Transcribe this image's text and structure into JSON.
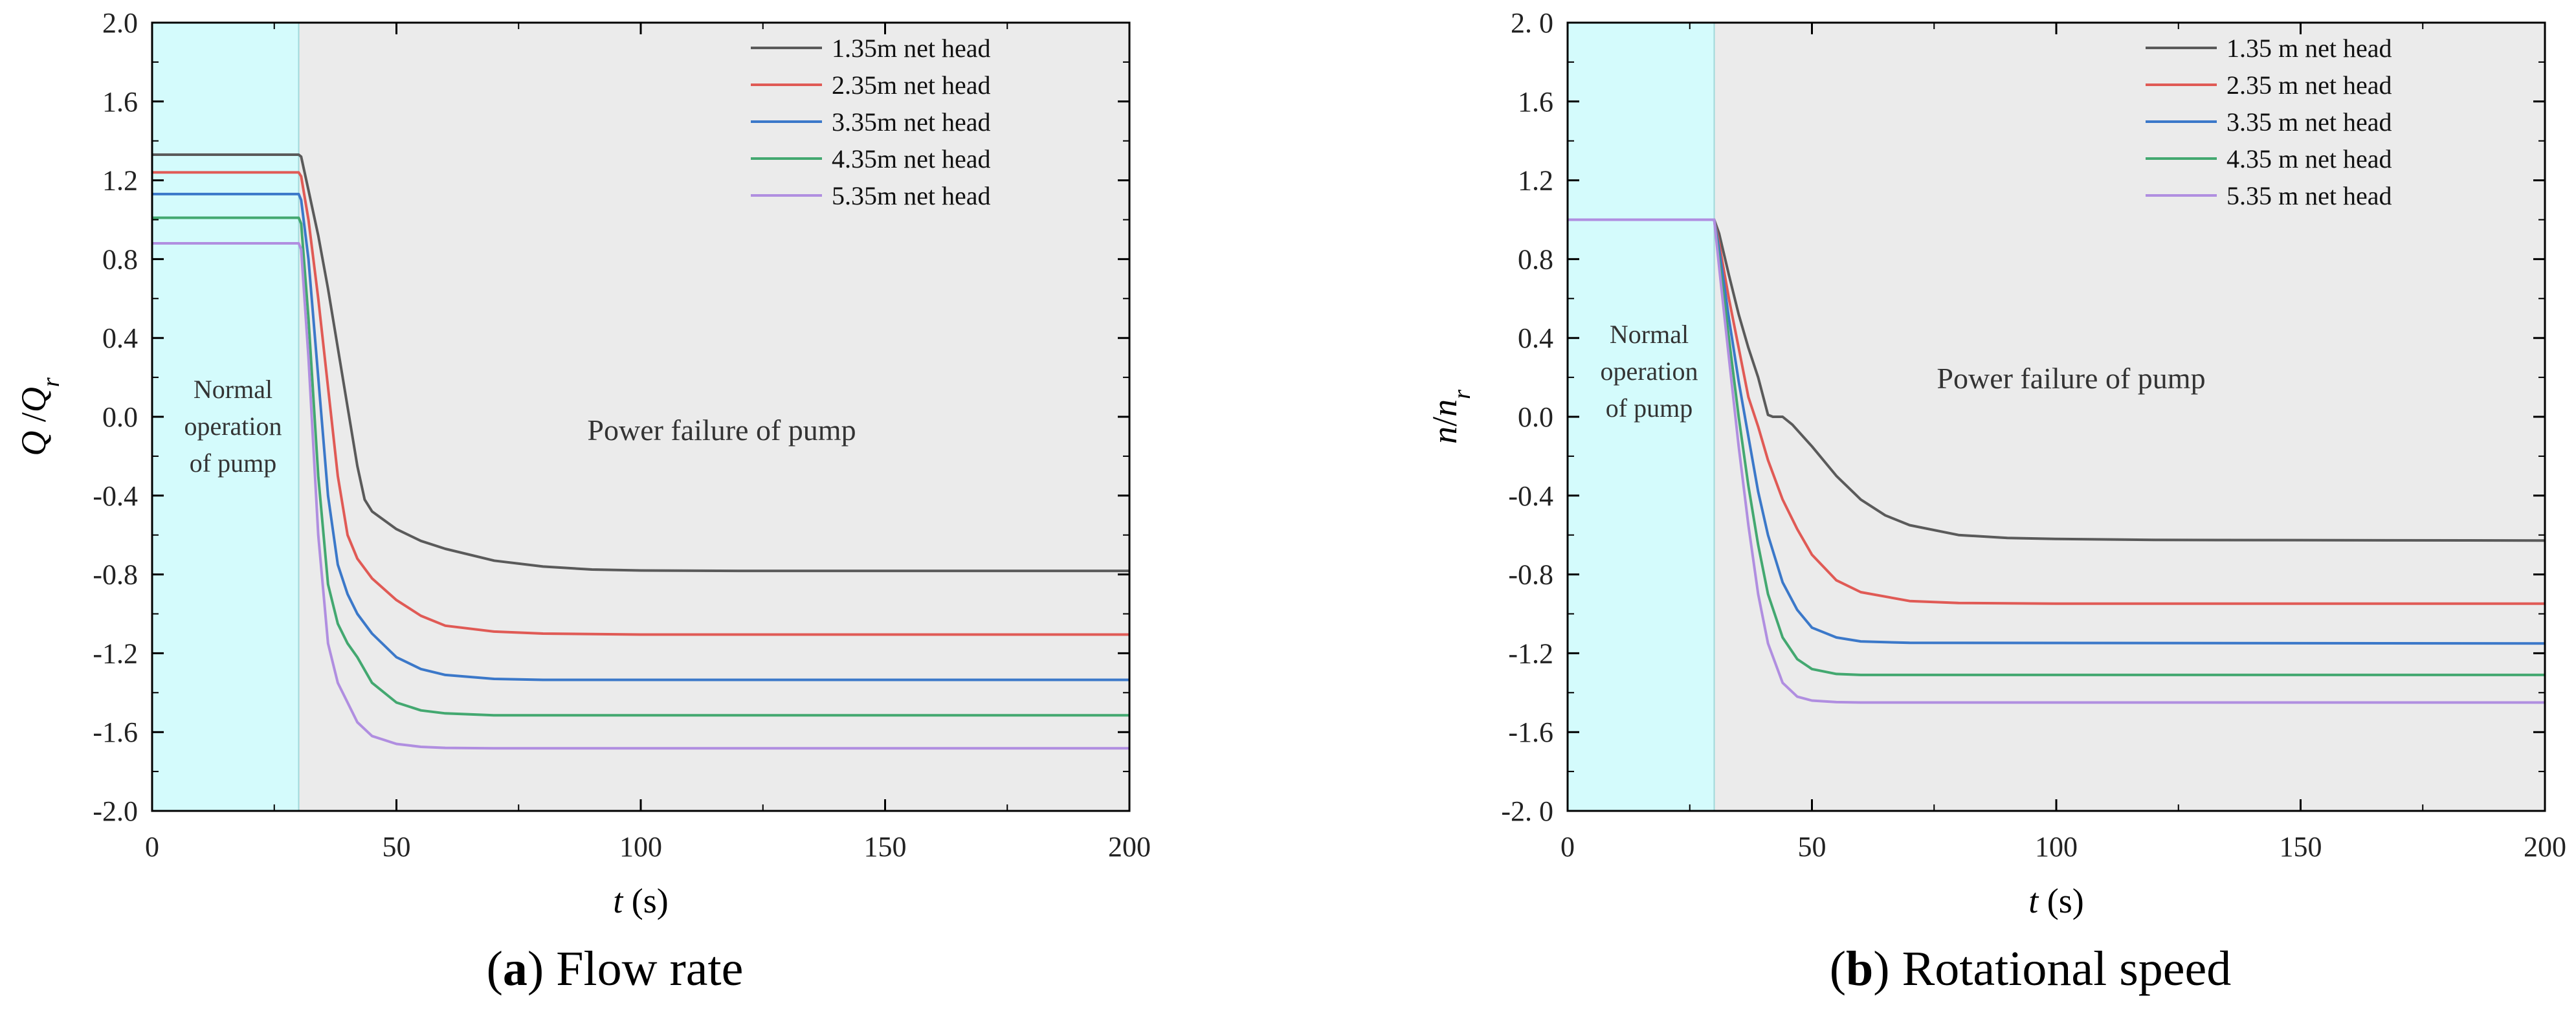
{
  "chart_data": [
    {
      "type": "line",
      "panel_label": "a",
      "caption": "Flow rate",
      "xlabel": "t",
      "xunit": "(s)",
      "ylabel": "Q",
      "ylabel_den": "Q",
      "ylabel_sub": "r",
      "xlim": [
        0,
        200
      ],
      "ylim": [
        -2.0,
        2.0
      ],
      "xticks": [
        "0",
        "50",
        "100",
        "150",
        "200"
      ],
      "yticks": [
        "2.0",
        "1.6",
        "1.2",
        "0.8",
        "0.4",
        "0.0",
        "-0.4",
        "-0.8",
        "-1.2",
        "-1.6",
        "-2.0"
      ],
      "regions": [
        {
          "name": "normal",
          "x": [
            0,
            30
          ],
          "color": "#d4fbfc",
          "label": [
            "Normal",
            "operation",
            "of pump"
          ]
        },
        {
          "name": "failure",
          "x": [
            30,
            200
          ],
          "color": "#ebebeb",
          "label": [
            "Power failure  of pump"
          ]
        }
      ],
      "legend_position": "top-right",
      "series": [
        {
          "name": "1.35m net head",
          "color": "#5a5a5a",
          "points": [
            [
              0,
              1.33
            ],
            [
              30,
              1.33
            ],
            [
              30.5,
              1.32
            ],
            [
              32,
              1.15
            ],
            [
              34,
              0.92
            ],
            [
              36,
              0.65
            ],
            [
              38,
              0.35
            ],
            [
              40,
              0.05
            ],
            [
              42,
              -0.25
            ],
            [
              43.5,
              -0.42
            ],
            [
              45,
              -0.48
            ],
            [
              50,
              -0.57
            ],
            [
              55,
              -0.63
            ],
            [
              60,
              -0.67
            ],
            [
              70,
              -0.73
            ],
            [
              80,
              -0.76
            ],
            [
              90,
              -0.775
            ],
            [
              100,
              -0.78
            ],
            [
              120,
              -0.782
            ],
            [
              200,
              -0.782
            ]
          ]
        },
        {
          "name": "2.35m net head",
          "color": "#e05a55",
          "points": [
            [
              0,
              1.24
            ],
            [
              30,
              1.24
            ],
            [
              30.5,
              1.22
            ],
            [
              32,
              1.0
            ],
            [
              34,
              0.6
            ],
            [
              36,
              0.15
            ],
            [
              38,
              -0.3
            ],
            [
              40,
              -0.6
            ],
            [
              42,
              -0.72
            ],
            [
              45,
              -0.82
            ],
            [
              50,
              -0.93
            ],
            [
              55,
              -1.01
            ],
            [
              60,
              -1.06
            ],
            [
              70,
              -1.09
            ],
            [
              80,
              -1.1
            ],
            [
              100,
              -1.105
            ],
            [
              200,
              -1.105
            ]
          ]
        },
        {
          "name": "3.35m net head",
          "color": "#3b78c9",
          "points": [
            [
              0,
              1.13
            ],
            [
              30,
              1.13
            ],
            [
              30.5,
              1.1
            ],
            [
              32,
              0.8
            ],
            [
              34,
              0.2
            ],
            [
              36,
              -0.4
            ],
            [
              38,
              -0.75
            ],
            [
              40,
              -0.9
            ],
            [
              42,
              -1.0
            ],
            [
              45,
              -1.1
            ],
            [
              50,
              -1.22
            ],
            [
              55,
              -1.28
            ],
            [
              60,
              -1.31
            ],
            [
              70,
              -1.33
            ],
            [
              80,
              -1.335
            ],
            [
              200,
              -1.335
            ]
          ]
        },
        {
          "name": "4.35m net head",
          "color": "#43a870",
          "points": [
            [
              0,
              1.01
            ],
            [
              30,
              1.01
            ],
            [
              30.5,
              0.98
            ],
            [
              32,
              0.5
            ],
            [
              34,
              -0.3
            ],
            [
              36,
              -0.85
            ],
            [
              38,
              -1.05
            ],
            [
              40,
              -1.15
            ],
            [
              42,
              -1.22
            ],
            [
              45,
              -1.35
            ],
            [
              50,
              -1.45
            ],
            [
              55,
              -1.49
            ],
            [
              60,
              -1.505
            ],
            [
              70,
              -1.515
            ],
            [
              200,
              -1.515
            ]
          ]
        },
        {
          "name": "5.35m net head",
          "color": "#b08ee0",
          "points": [
            [
              0,
              0.88
            ],
            [
              30,
              0.88
            ],
            [
              30.5,
              0.85
            ],
            [
              32,
              0.3
            ],
            [
              34,
              -0.6
            ],
            [
              36,
              -1.15
            ],
            [
              38,
              -1.35
            ],
            [
              40,
              -1.45
            ],
            [
              42,
              -1.55
            ],
            [
              45,
              -1.62
            ],
            [
              50,
              -1.66
            ],
            [
              55,
              -1.675
            ],
            [
              60,
              -1.68
            ],
            [
              70,
              -1.682
            ],
            [
              200,
              -1.682
            ]
          ]
        }
      ]
    },
    {
      "type": "line",
      "panel_label": "b",
      "caption": "Rotational speed",
      "xlabel": "t",
      "xunit": "(s)",
      "ylabel": "n",
      "ylabel_den": "n",
      "ylabel_sub": "r",
      "xlim": [
        0,
        200
      ],
      "ylim": [
        -2.0,
        2.0
      ],
      "xticks": [
        "0",
        "50",
        "100",
        "150",
        "200"
      ],
      "yticks": [
        "2. 0",
        "1.6",
        "1.2",
        "0.8",
        "0.4",
        "0.0",
        "-0.4",
        "-0.8",
        "-1.2",
        "-1.6",
        "-2. 0"
      ],
      "regions": [
        {
          "name": "normal",
          "x": [
            0,
            30
          ],
          "color": "#d4fbfc",
          "label": [
            "Normal",
            "operation",
            "of pump"
          ]
        },
        {
          "name": "failure",
          "x": [
            30,
            200
          ],
          "color": "#ebebeb",
          "label": [
            "Power failure  of pump"
          ]
        }
      ],
      "legend_position": "top-right",
      "series": [
        {
          "name": "1.35 m net head",
          "color": "#5a5a5a",
          "points": [
            [
              0,
              1.0
            ],
            [
              30,
              1.0
            ],
            [
              31,
              0.93
            ],
            [
              33,
              0.72
            ],
            [
              35,
              0.52
            ],
            [
              37,
              0.35
            ],
            [
              39,
              0.2
            ],
            [
              41,
              0.01
            ],
            [
              42,
              0.0
            ],
            [
              44,
              0.0
            ],
            [
              46,
              -0.04
            ],
            [
              50,
              -0.15
            ],
            [
              55,
              -0.3
            ],
            [
              60,
              -0.42
            ],
            [
              65,
              -0.5
            ],
            [
              70,
              -0.55
            ],
            [
              80,
              -0.6
            ],
            [
              90,
              -0.615
            ],
            [
              100,
              -0.62
            ],
            [
              120,
              -0.625
            ],
            [
              200,
              -0.628
            ]
          ]
        },
        {
          "name": "2.35 m net head",
          "color": "#e05a55",
          "points": [
            [
              0,
              1.0
            ],
            [
              30,
              1.0
            ],
            [
              31,
              0.88
            ],
            [
              33,
              0.6
            ],
            [
              35,
              0.35
            ],
            [
              37,
              0.1
            ],
            [
              39,
              -0.05
            ],
            [
              41,
              -0.22
            ],
            [
              44,
              -0.42
            ],
            [
              47,
              -0.57
            ],
            [
              50,
              -0.7
            ],
            [
              55,
              -0.83
            ],
            [
              60,
              -0.89
            ],
            [
              70,
              -0.935
            ],
            [
              80,
              -0.945
            ],
            [
              100,
              -0.948
            ],
            [
              200,
              -0.948
            ]
          ]
        },
        {
          "name": "3.35 m net head",
          "color": "#3b78c9",
          "points": [
            [
              0,
              1.0
            ],
            [
              30,
              1.0
            ],
            [
              31,
              0.85
            ],
            [
              33,
              0.5
            ],
            [
              35,
              0.18
            ],
            [
              37,
              -0.1
            ],
            [
              39,
              -0.38
            ],
            [
              41,
              -0.6
            ],
            [
              44,
              -0.84
            ],
            [
              47,
              -0.98
            ],
            [
              50,
              -1.07
            ],
            [
              55,
              -1.12
            ],
            [
              60,
              -1.14
            ],
            [
              70,
              -1.147
            ],
            [
              200,
              -1.15
            ]
          ]
        },
        {
          "name": "4.35 m net head",
          "color": "#43a870",
          "points": [
            [
              0,
              1.0
            ],
            [
              30,
              1.0
            ],
            [
              31,
              0.8
            ],
            [
              33,
              0.4
            ],
            [
              35,
              0.0
            ],
            [
              37,
              -0.35
            ],
            [
              39,
              -0.65
            ],
            [
              41,
              -0.9
            ],
            [
              44,
              -1.12
            ],
            [
              47,
              -1.23
            ],
            [
              50,
              -1.28
            ],
            [
              55,
              -1.305
            ],
            [
              60,
              -1.31
            ],
            [
              200,
              -1.31
            ]
          ]
        },
        {
          "name": "5.35 m net head",
          "color": "#b08ee0",
          "points": [
            [
              0,
              1.0
            ],
            [
              30,
              1.0
            ],
            [
              31,
              0.76
            ],
            [
              33,
              0.3
            ],
            [
              35,
              -0.15
            ],
            [
              37,
              -0.55
            ],
            [
              39,
              -0.9
            ],
            [
              41,
              -1.15
            ],
            [
              44,
              -1.35
            ],
            [
              47,
              -1.42
            ],
            [
              50,
              -1.44
            ],
            [
              55,
              -1.448
            ],
            [
              60,
              -1.45
            ],
            [
              200,
              -1.45
            ]
          ]
        }
      ]
    }
  ]
}
